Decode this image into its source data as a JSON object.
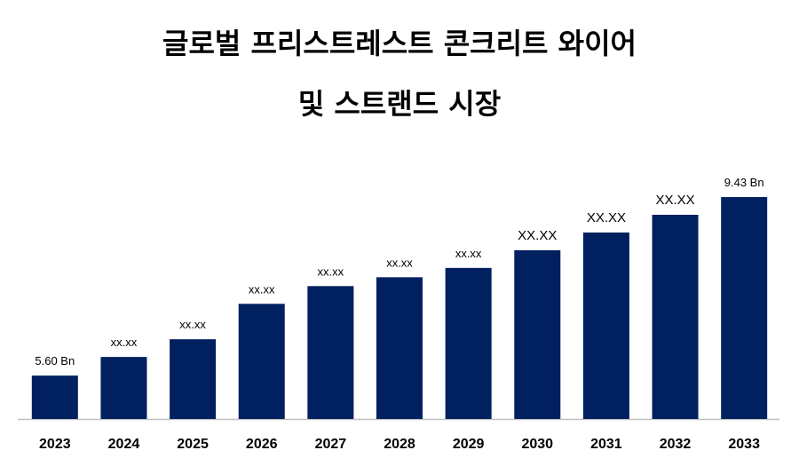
{
  "chart_data": {
    "type": "bar",
    "title": [
      "글로벌 프리스트레스트 콘크리트 와이어",
      "및 스트랜드 시장"
    ],
    "categories": [
      "2023",
      "2024",
      "2025",
      "2026",
      "2027",
      "2028",
      "2029",
      "2030",
      "2031",
      "2032",
      "2033"
    ],
    "values": [
      5.6,
      6.0,
      6.38,
      7.14,
      7.52,
      7.71,
      7.91,
      8.29,
      8.67,
      9.05,
      9.43
    ],
    "value_labels": [
      "5.60 Bn",
      "xx.xx",
      "xx.xx",
      "xx.xx",
      "xx.xx",
      "xx.xx",
      "xx.xx",
      "XX.XX",
      "XX.XX",
      "XX.XX",
      "9.43 Bn"
    ],
    "color": "#002060",
    "ylim": [
      4.67,
      10.23
    ]
  }
}
